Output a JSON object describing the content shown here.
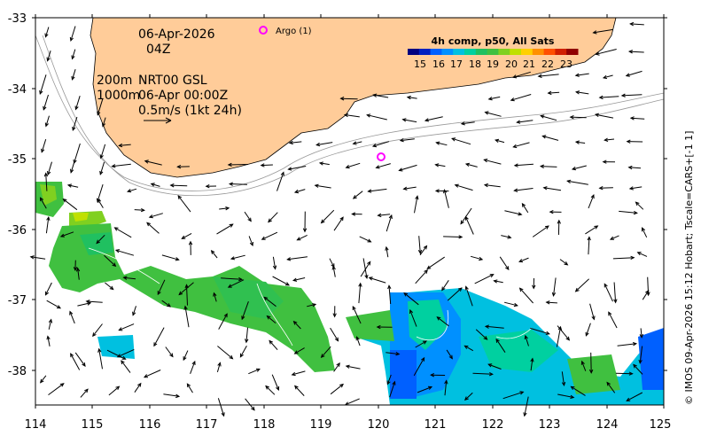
{
  "map": {
    "date": "06-Apr-2026",
    "time": "04Z",
    "depth_200": "200m",
    "depth_1000": "1000m",
    "product": "NRT00 GSL",
    "product_time": "06-Apr 00:00Z",
    "scale_text": "0.5m/s (1kt 24h)",
    "argo_label": "Argo (1)",
    "credit": "© IMOS 09-Apr-2026 15:12 Hobart; Tscale=CARS+[-1 1]",
    "land_color": "#ffcc99",
    "argo_color": "#ff00ff",
    "x_ticks": [
      "114",
      "115",
      "116",
      "117",
      "118",
      "119",
      "120",
      "121",
      "122",
      "123",
      "124",
      "125"
    ],
    "y_ticks": [
      "-33",
      "-34",
      "-35",
      "-36",
      "-37",
      "-38"
    ]
  },
  "colorbar": {
    "title": "4h comp, p50, All Sats",
    "labels": [
      "15",
      "16",
      "17",
      "18",
      "19",
      "20",
      "21",
      "22",
      "23"
    ],
    "colors": [
      "#000080",
      "#0020c0",
      "#0060ff",
      "#0090ff",
      "#00c0e0",
      "#00d0a0",
      "#20c060",
      "#40c040",
      "#80d020",
      "#c0e000",
      "#ffd000",
      "#ff9000",
      "#ff5000",
      "#d02000",
      "#900000"
    ]
  }
}
